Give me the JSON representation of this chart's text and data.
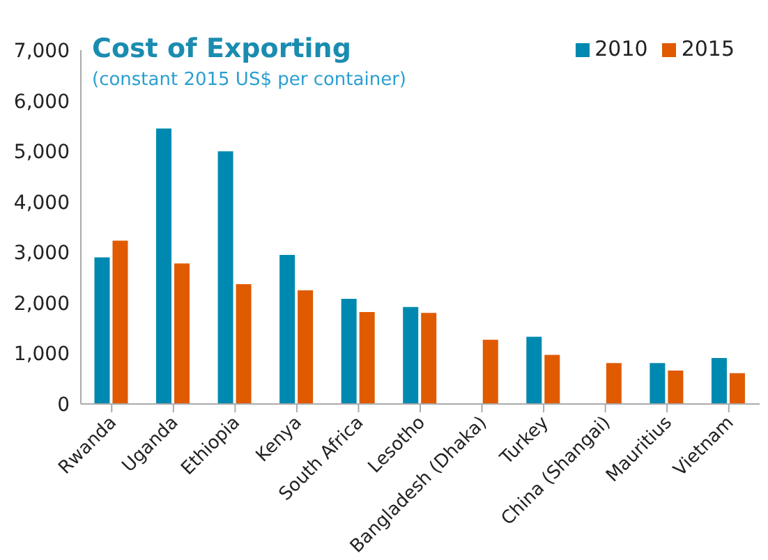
{
  "chart_data": {
    "type": "bar",
    "title": "Cost of Exporting",
    "subtitle": "(constant 2015 US$ per container)",
    "categories": [
      "Rwanda",
      "Uganda",
      "Ethiopia",
      "Kenya",
      "South Africa",
      "Lesotho",
      "Bangladesh (Dhaka)",
      "Turkey",
      "China (Shangai)",
      "Mauritius",
      "Vietnam"
    ],
    "series": [
      {
        "name": "2010",
        "color": "#0089b0",
        "values": [
          2900,
          5450,
          5000,
          2950,
          2080,
          1920,
          null,
          1330,
          null,
          810,
          910
        ]
      },
      {
        "name": "2015",
        "color": "#e05a00",
        "values": [
          3230,
          2780,
          2370,
          2250,
          1820,
          1800,
          1270,
          970,
          810,
          660,
          610
        ]
      }
    ],
    "ylim": [
      0,
      7000
    ],
    "yticks": [
      {
        "value": 0,
        "label": "0"
      },
      {
        "value": 1000,
        "label": "1,000"
      },
      {
        "value": 2000,
        "label": "2,000"
      },
      {
        "value": 3000,
        "label": "3,000"
      },
      {
        "value": 4000,
        "label": "4,000"
      },
      {
        "value": 5000,
        "label": "5,000"
      },
      {
        "value": 6000,
        "label": "6,000"
      },
      {
        "value": 7000,
        "label": "7,000"
      }
    ],
    "grid": false,
    "legend": "top right"
  }
}
